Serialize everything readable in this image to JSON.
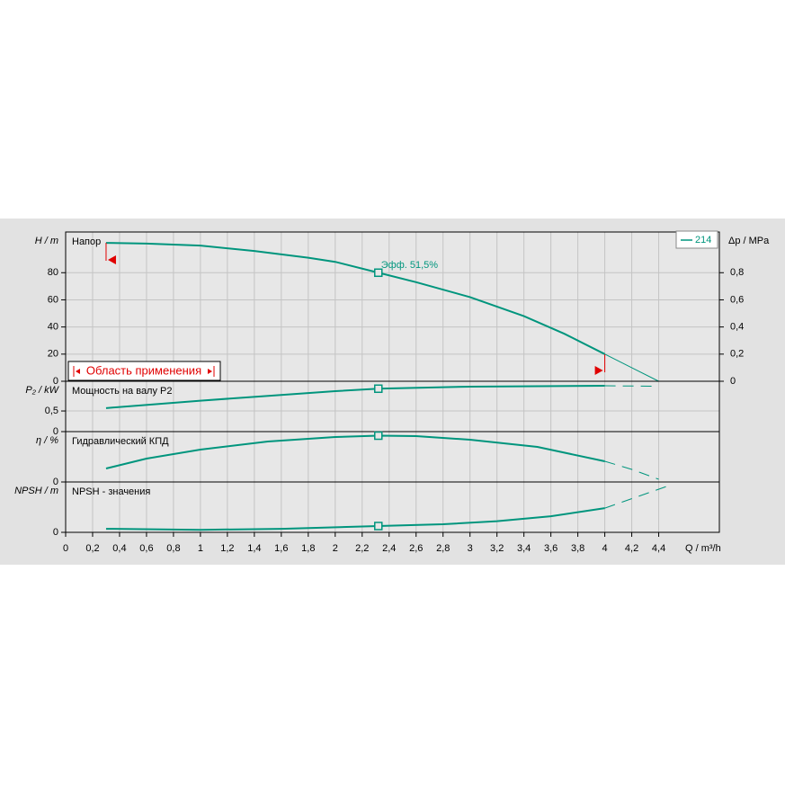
{
  "chart_data": [
    {
      "type": "line",
      "title": "Напор",
      "ylabel": "H / m",
      "ylim": [
        0,
        110
      ],
      "yticks": [
        0,
        20,
        40,
        60,
        80
      ],
      "y2label": "Δp / MPa",
      "y2lim": [
        0,
        1.1
      ],
      "y2ticks": [
        0,
        {
          "value": 0.2,
          "label": "0,2"
        },
        {
          "value": 0.4,
          "label": "0,4"
        },
        {
          "value": 0.6,
          "label": "0,6"
        },
        {
          "value": 0.8,
          "label": "0,8"
        }
      ],
      "grid": true,
      "series": [
        {
          "name": "214",
          "color": "#00957d",
          "x": [
            0.3,
            0.6,
            1.0,
            1.4,
            1.8,
            2.0,
            2.32,
            2.6,
            3.0,
            3.4,
            3.7,
            4.0
          ],
          "values": [
            102,
            101.5,
            100,
            96,
            91,
            88,
            80,
            73,
            62,
            48,
            35,
            20
          ]
        }
      ],
      "extrapolation": {
        "x": [
          4.0,
          4.2,
          4.4
        ],
        "values": [
          20,
          10,
          0
        ]
      },
      "duty_point": {
        "x": 2.32,
        "y": 80,
        "label": "Эфф.  51,5%"
      },
      "operating_range": {
        "label": "Область применения",
        "x": [
          0.3,
          4.0
        ],
        "color": "#e00000"
      }
    },
    {
      "type": "line",
      "title": "Мощность на валу P2",
      "ylabel": "P₂ / kW",
      "ylim": [
        0,
        1.22
      ],
      "yticks": [
        0,
        {
          "value": 0.5,
          "label": "0,5"
        }
      ],
      "grid": true,
      "series": [
        {
          "color": "#00957d",
          "x": [
            0.3,
            1.0,
            2.0,
            2.32,
            3.0,
            4.0
          ],
          "values": [
            0.57,
            0.75,
            0.98,
            1.04,
            1.09,
            1.11
          ]
        }
      ],
      "extrapolation": {
        "x": [
          4.0,
          4.4
        ],
        "values": [
          1.11,
          1.1
        ]
      },
      "duty_point": {
        "x": 2.32,
        "y": 1.04
      }
    },
    {
      "type": "line",
      "title": "Гидравлический КПД",
      "ylabel": "η / %",
      "ylim": [
        0,
        56
      ],
      "yticks": [
        0
      ],
      "grid": true,
      "series": [
        {
          "color": "#00957d",
          "x": [
            0.3,
            0.6,
            1.0,
            1.5,
            2.0,
            2.32,
            2.6,
            3.0,
            3.5,
            4.0
          ],
          "values": [
            15,
            26,
            36,
            45,
            50,
            51.5,
            51,
            47,
            39,
            23
          ]
        }
      ],
      "extrapolation": {
        "x": [
          4.0,
          4.2,
          4.4
        ],
        "values": [
          23,
          14,
          3
        ]
      },
      "duty_point": {
        "x": 2.32,
        "y": 51.5
      }
    },
    {
      "type": "line",
      "title": "NPSH - значения",
      "ylabel": "NPSH / m",
      "ylim": [
        0,
        10
      ],
      "yticks": [
        0
      ],
      "grid": true,
      "series": [
        {
          "color": "#00957d",
          "x": [
            0.3,
            1.0,
            1.6,
            2.32,
            2.8,
            3.2,
            3.6,
            4.0
          ],
          "values": [
            0.7,
            0.5,
            0.7,
            1.25,
            1.6,
            2.2,
            3.2,
            4.8
          ]
        }
      ],
      "extrapolation": {
        "x": [
          4.0,
          4.5
        ],
        "values": [
          4.8,
          9.5
        ]
      },
      "duty_point": {
        "x": 2.32,
        "y": 1.25
      },
      "xlabel": "Q / m³/h",
      "xlim": [
        0,
        4.85
      ],
      "xticks": [
        0,
        {
          "value": 0.2,
          "label": "0,2"
        },
        {
          "value": 0.4,
          "label": "0,4"
        },
        {
          "value": 0.6,
          "label": "0,6"
        },
        {
          "value": 0.8,
          "label": "0,8"
        },
        1,
        {
          "value": 1.2,
          "label": "1,2"
        },
        {
          "value": 1.4,
          "label": "1,4"
        },
        {
          "value": 1.6,
          "label": "1,6"
        },
        {
          "value": 1.8,
          "label": "1,8"
        },
        2,
        {
          "value": 2.2,
          "label": "2,2"
        },
        {
          "value": 2.4,
          "label": "2,4"
        },
        {
          "value": 2.6,
          "label": "2,6"
        },
        {
          "value": 2.8,
          "label": "2,8"
        },
        3,
        {
          "value": 3.2,
          "label": "3,2"
        },
        {
          "value": 3.4,
          "label": "3,4"
        },
        {
          "value": 3.6,
          "label": "3,6"
        },
        {
          "value": 3.8,
          "label": "3,8"
        },
        4,
        {
          "value": 4.2,
          "label": "4,2"
        },
        {
          "value": 4.4,
          "label": "4,4"
        }
      ]
    }
  ]
}
